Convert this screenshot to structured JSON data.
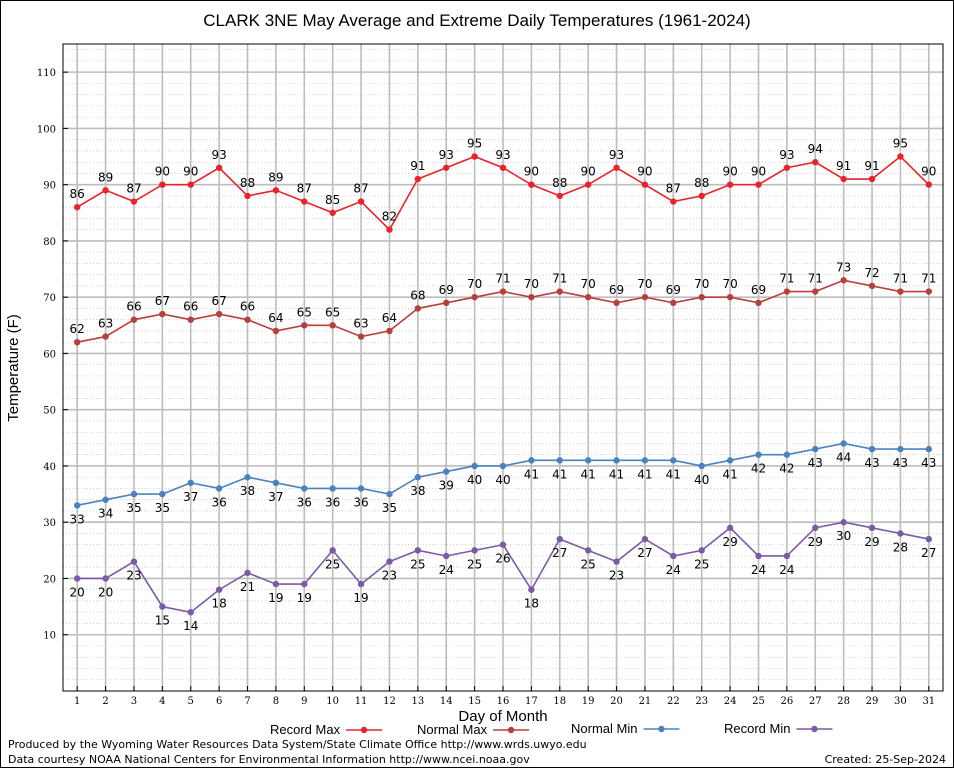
{
  "chart_data": {
    "type": "line",
    "title": "CLARK 3NE May Average and Extreme Daily Temperatures (1961-2024)",
    "xlabel": "Day of Month",
    "ylabel": "Temperature (F)",
    "x": [
      1,
      2,
      3,
      4,
      5,
      6,
      7,
      8,
      9,
      10,
      11,
      12,
      13,
      14,
      15,
      16,
      17,
      18,
      19,
      20,
      21,
      22,
      23,
      24,
      25,
      26,
      27,
      28,
      29,
      30,
      31
    ],
    "xlim": [
      0.5,
      31.5
    ],
    "ylim": [
      0,
      115
    ],
    "yticks": [
      10,
      20,
      30,
      40,
      50,
      60,
      70,
      80,
      90,
      100,
      110
    ],
    "grid": true,
    "legend_position": "bottom",
    "series": [
      {
        "name": "Record Max",
        "color": "#e8232a",
        "label_position": "above",
        "values": [
          86,
          89,
          87,
          90,
          90,
          93,
          88,
          89,
          87,
          85,
          87,
          82,
          91,
          93,
          95,
          93,
          90,
          88,
          90,
          93,
          90,
          87,
          88,
          90,
          90,
          93,
          94,
          91,
          91,
          95,
          90
        ]
      },
      {
        "name": "Normal Max",
        "color": "#b5403e",
        "label_position": "above",
        "values": [
          62,
          63,
          66,
          67,
          66,
          67,
          66,
          64,
          65,
          65,
          63,
          64,
          68,
          69,
          70,
          71,
          70,
          71,
          70,
          69,
          70,
          69,
          70,
          70,
          69,
          71,
          71,
          73,
          72,
          71,
          71
        ]
      },
      {
        "name": "Normal Min",
        "color": "#4b82bd",
        "label_position": "below",
        "values": [
          33,
          34,
          35,
          35,
          37,
          36,
          38,
          37,
          36,
          36,
          36,
          35,
          38,
          39,
          40,
          40,
          41,
          41,
          41,
          41,
          41,
          41,
          40,
          41,
          42,
          42,
          43,
          44,
          43,
          43,
          43
        ]
      },
      {
        "name": "Record Min",
        "color": "#7b5aa6",
        "label_position": "below",
        "values": [
          20,
          20,
          23,
          15,
          14,
          18,
          21,
          19,
          19,
          25,
          19,
          23,
          25,
          24,
          25,
          26,
          18,
          27,
          25,
          23,
          27,
          24,
          25,
          29,
          24,
          24,
          29,
          30,
          29,
          28,
          27
        ]
      }
    ]
  },
  "footer": {
    "produced_by": "Produced by the Wyoming Water Resources Data System/State Climate Office http://www.wrds.uwyo.edu",
    "courtesy": "Data courtesy NOAA National Centers for Environmental Information http://www.ncei.noaa.gov",
    "created": "Created:  25-Sep-2024"
  }
}
